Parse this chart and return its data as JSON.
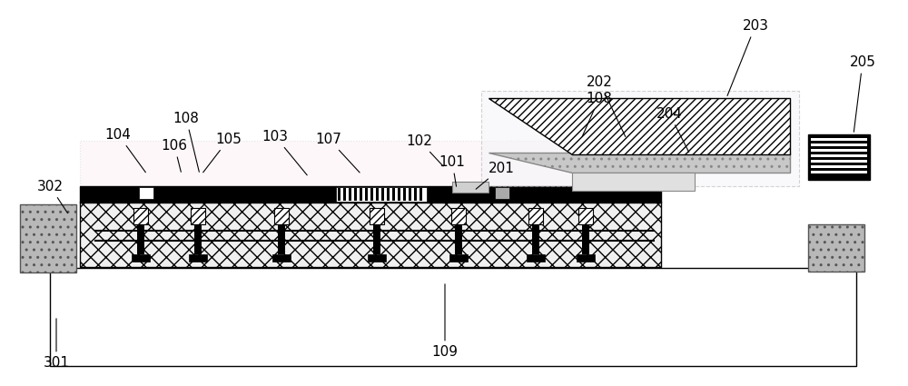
{
  "fig_width": 10.0,
  "fig_height": 4.25,
  "dpi": 100,
  "bg_color": "#ffffff",
  "annotations": [
    [
      "101",
      498,
      178,
      503,
      208
    ],
    [
      "102",
      462,
      155,
      490,
      185
    ],
    [
      "103",
      303,
      150,
      340,
      195
    ],
    [
      "104",
      130,
      148,
      162,
      192
    ],
    [
      "105",
      252,
      153,
      222,
      192
    ],
    [
      "106",
      192,
      160,
      200,
      192
    ],
    [
      "107",
      362,
      153,
      398,
      192
    ],
    [
      "108",
      205,
      130,
      220,
      192
    ],
    [
      "108",
      660,
      108,
      640,
      153
    ],
    [
      "109",
      490,
      388,
      490,
      310
    ],
    [
      "201",
      552,
      185,
      522,
      210
    ],
    [
      "202",
      660,
      90,
      690,
      153
    ],
    [
      "203",
      832,
      28,
      800,
      108
    ],
    [
      "204",
      737,
      125,
      760,
      170
    ],
    [
      "205",
      950,
      68,
      940,
      148
    ],
    [
      "301",
      62,
      400,
      62,
      348
    ],
    [
      "302",
      55,
      205,
      76,
      237
    ]
  ]
}
